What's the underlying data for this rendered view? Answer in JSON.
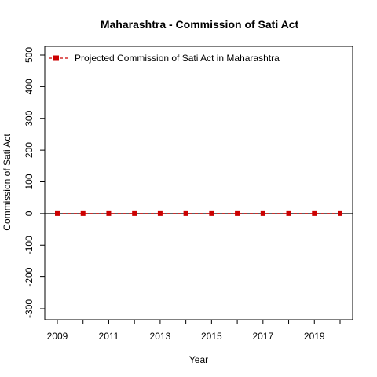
{
  "chart_data": {
    "type": "line",
    "title": "Maharashtra  -  Commission of Sati Act",
    "xlabel": "Year",
    "ylabel": "Commission of Sati Act",
    "x": [
      2009,
      2010,
      2011,
      2012,
      2013,
      2014,
      2015,
      2016,
      2017,
      2018,
      2019,
      2020
    ],
    "xlim": [
      2009,
      2020
    ],
    "xticks": [
      2009,
      2010,
      2011,
      2012,
      2013,
      2014,
      2015,
      2016,
      2017,
      2018,
      2019,
      2020
    ],
    "xtick_labels": [
      "2009",
      "",
      "2011",
      "",
      "2013",
      "",
      "2015",
      "",
      "2017",
      "",
      "2019",
      ""
    ],
    "ylim": [
      -300,
      500
    ],
    "yticks": [
      -300,
      -200,
      -100,
      0,
      100,
      200,
      300,
      400,
      500
    ],
    "ytick_labels": [
      "-300",
      "-200",
      "-100",
      "0",
      "100",
      "200",
      "300",
      "400",
      "500"
    ],
    "series": [
      {
        "name": "Projected  Commission of Sati Act  in  Maharashtra",
        "values": [
          0,
          0,
          0,
          0,
          0,
          0,
          0,
          0,
          0,
          0,
          0,
          0
        ],
        "color": "#cc0000",
        "line_style": "dashed",
        "marker": "square"
      }
    ],
    "reference_line": {
      "y": 0,
      "color": "#000000"
    },
    "legend_position": "top-left",
    "grid": false
  }
}
